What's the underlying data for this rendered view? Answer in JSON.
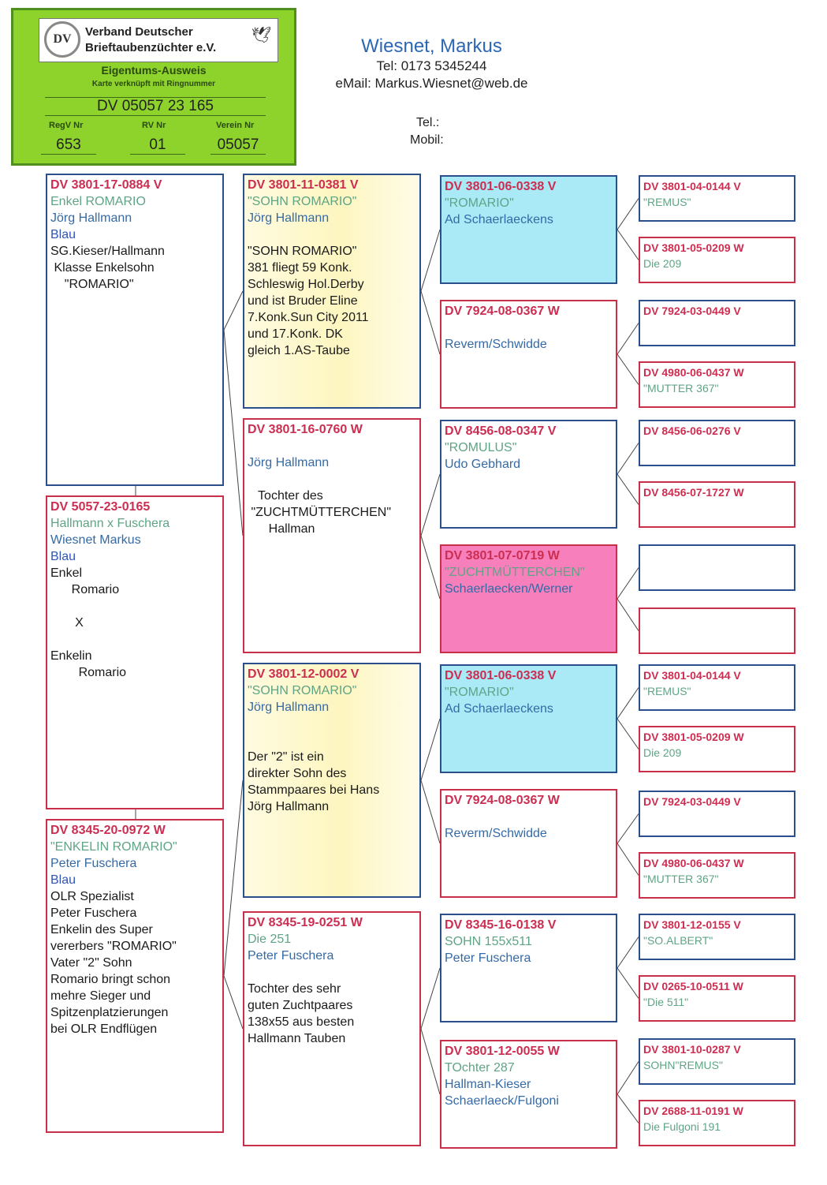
{
  "card": {
    "org_line1": "Verband Deutscher",
    "org_line2": "Brieftaubenzüchter e.V.",
    "logo_text": "DV",
    "title": "Eigentums-Ausweis",
    "subtitle": "Karte verknüpft mit Ringnummer",
    "ring": "DV 05057 23 165",
    "regv_label": "RegV Nr",
    "regv": "653",
    "rv_label": "RV Nr",
    "rv": "01",
    "verein_label": "Verein Nr",
    "verein": "05057",
    "color": "#8ed22c"
  },
  "owner": {
    "name": "Wiesnet, Markus",
    "tel": "Tel: 0173 5345244",
    "email": "eMail: Markus.Wiesnet@web.de",
    "tel2_label": "Tel.:",
    "mobil_label": "Mobil:"
  },
  "colors": {
    "male_border": "#2a4f8a",
    "female_border": "#c8304a",
    "ring_text": "#cc2e52",
    "name_text": "#5fa485",
    "breeder_text": "#346aa6"
  },
  "pedigree": {
    "father": {
      "ring": "DV 3801-17-0884 V",
      "name": "Enkel ROMARIO",
      "breeder": "Jörg Hallmann",
      "color": "Blau",
      "notes": [
        "SG.Kieser/Hallmann",
        " Klasse Enkelsohn",
        "    \"ROMARIO\""
      ],
      "sex": "V"
    },
    "subject": {
      "ring": "DV 5057-23-0165",
      "name": "Hallmann x Fuschera",
      "breeder": "Wiesnet Markus",
      "color": "Blau",
      "notes": [
        "Enkel",
        "      Romario",
        "",
        "       X",
        "",
        "Enkelin",
        "        Romario"
      ],
      "sex": "W"
    },
    "mother": {
      "ring": "DV 8345-20-0972 W",
      "name": "\"ENKELIN ROMARIO\"",
      "breeder": "Peter Fuschera",
      "color": "Blau",
      "notes": [
        "OLR Spezialist",
        "Peter Fuschera",
        "Enkelin des Super",
        "vererbers \"ROMARIO\"",
        "Vater \"2\" Sohn",
        "Romario bringt schon",
        "mehre Sieger und",
        "Spitzenplatzierungen",
        "bei OLR Endflügen"
      ],
      "sex": "W"
    },
    "grandparents": [
      {
        "ring": "DV 3801-11-0381 V",
        "name": "\"SOHN ROMARIO\"",
        "breeder": "Jörg Hallmann",
        "notes": [
          "",
          "\"SOHN ROMARIO\"",
          "381 fliegt 59 Konk.",
          "Schleswig Hol.Derby",
          "und ist Bruder Eline",
          "7.Konk.Sun City 2011",
          "und 17.Konk. DK",
          "gleich 1.AS-Taube"
        ],
        "sex": "V",
        "fill": "yellow-gradient"
      },
      {
        "ring": "DV 3801-16-0760 W",
        "name": "",
        "breeder": "Jörg Hallmann",
        "notes": [
          "",
          "   Tochter des",
          " \"ZUCHTMÜTTERCHEN\"",
          "      Hallman"
        ],
        "sex": "W"
      },
      {
        "ring": "DV 3801-12-0002 V",
        "name": "\"SOHN ROMARIO\"",
        "breeder": "Jörg Hallmann",
        "notes": [
          "",
          "",
          "Der \"2\" ist ein",
          "direkter Sohn des",
          "Stammpaares bei Hans",
          "Jörg Hallmann"
        ],
        "sex": "V",
        "fill": "yellow-gradient"
      },
      {
        "ring": "DV 8345-19-0251 W",
        "name": "Die 251",
        "breeder": "Peter Fuschera",
        "notes": [
          "",
          "Tochter des sehr",
          "guten Zuchtpaares",
          "138x55 aus besten",
          "Hallmann Tauben"
        ],
        "sex": "W"
      }
    ],
    "great_grandparents": [
      {
        "ring": "DV 3801-06-0338 V",
        "name": "\"ROMARIO\"",
        "breeder": "Ad Schaerlaeckens",
        "sex": "V",
        "fill": "#a9eaf6"
      },
      {
        "ring": "DV 7924-08-0367 W",
        "name": "",
        "breeder": "Reverm/Schwidde",
        "sex": "W"
      },
      {
        "ring": "DV 8456-08-0347 V",
        "name": "\"ROMULUS\"",
        "breeder": "Udo Gebhard",
        "sex": "V"
      },
      {
        "ring": "DV 3801-07-0719 W",
        "name": "\"ZUCHTMÜTTERCHEN\"",
        "breeder": "Schaerlaecken/Werner",
        "sex": "W",
        "fill": "#f77fbc"
      },
      {
        "ring": "DV 3801-06-0338 V",
        "name": "\"ROMARIO\"",
        "breeder": "Ad Schaerlaeckens",
        "sex": "V",
        "fill": "#a9eaf6"
      },
      {
        "ring": "DV 7924-08-0367 W",
        "name": "",
        "breeder": "Reverm/Schwidde",
        "sex": "W"
      },
      {
        "ring": "DV 8345-16-0138 V",
        "name": "SOHN 155x511",
        "breeder": "Peter Fuschera",
        "sex": "V"
      },
      {
        "ring": "DV 3801-12-0055 W",
        "name": "TOchter 287",
        "breeder": "Hallman-Kieser",
        "notes": [
          "Schaerlaeck/Fulgoni"
        ],
        "sex": "W"
      }
    ],
    "great_great_grandparents": [
      {
        "ring": "DV 3801-04-0144 V",
        "name": "\"REMUS\"",
        "sex": "V"
      },
      {
        "ring": "DV 3801-05-0209 W",
        "name": "Die 209",
        "sex": "W"
      },
      {
        "ring": "DV 7924-03-0449 V",
        "name": "",
        "sex": "V"
      },
      {
        "ring": "DV 4980-06-0437 W",
        "name": "\"MUTTER 367\"",
        "sex": "W"
      },
      {
        "ring": "DV 8456-06-0276 V",
        "name": "",
        "sex": "V"
      },
      {
        "ring": "DV 8456-07-1727 W",
        "name": "",
        "sex": "W"
      },
      {
        "ring": "",
        "name": "",
        "sex": "V"
      },
      {
        "ring": "",
        "name": "",
        "sex": "W"
      },
      {
        "ring": "DV 3801-04-0144 V",
        "name": "\"REMUS\"",
        "sex": "V"
      },
      {
        "ring": "DV 3801-05-0209 W",
        "name": "Die 209",
        "sex": "W"
      },
      {
        "ring": "DV 7924-03-0449 V",
        "name": "",
        "sex": "V"
      },
      {
        "ring": "DV 4980-06-0437 W",
        "name": "\"MUTTER 367\"",
        "sex": "W"
      },
      {
        "ring": "DV 3801-12-0155 V",
        "name": "\"SO.ALBERT\"",
        "sex": "V"
      },
      {
        "ring": "DV 0265-10-0511 W",
        "name": "\"Die 511\"",
        "sex": "W"
      },
      {
        "ring": "DV 3801-10-0287 V",
        "name": "SOHN\"REMUS\"",
        "sex": "V"
      },
      {
        "ring": "DV 2688-11-0191 W",
        "name": "Die Fulgoni 191",
        "sex": "W"
      }
    ]
  }
}
